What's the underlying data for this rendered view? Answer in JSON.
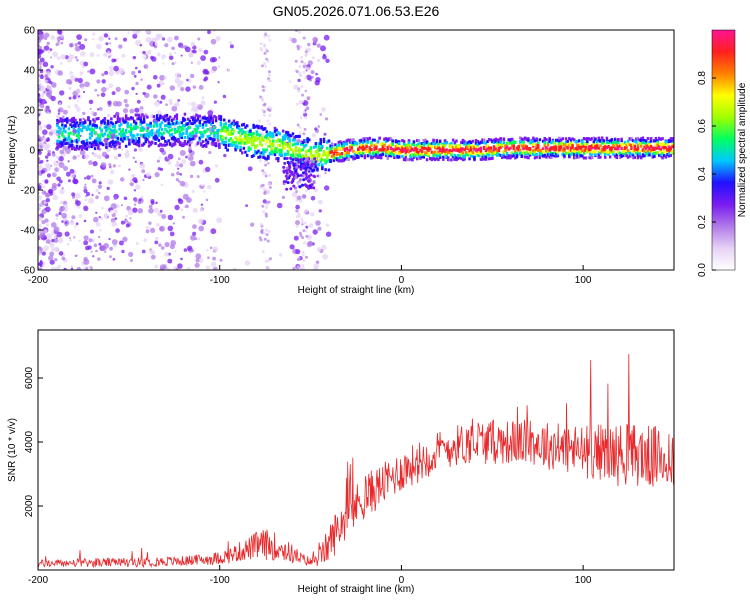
{
  "chart_data": [
    {
      "type": "heatmap",
      "title": "GN05.2026.071.06.53.E26",
      "xlabel": "Height of straight line (km)",
      "ylabel": "Frequency (Hz)",
      "xlim": [
        -200,
        150
      ],
      "ylim": [
        -60,
        60
      ],
      "xticks": [
        -200,
        -100,
        0,
        100
      ],
      "yticks": [
        60,
        40,
        20,
        0,
        -20,
        -40,
        -60
      ],
      "ridge": {
        "x": [
          -200,
          -180,
          -160,
          -140,
          -120,
          -100,
          -90,
          -80,
          -70,
          -60,
          -50,
          -40,
          -30,
          -20,
          -10,
          0,
          20,
          40,
          60,
          80,
          100,
          120,
          150
        ],
        "freq": [
          8,
          8,
          9,
          10,
          10,
          9,
          6,
          4,
          3,
          0,
          -3,
          -2,
          0,
          1,
          1,
          0,
          0,
          0,
          1,
          1,
          1,
          1,
          1
        ]
      },
      "colorbar": {
        "label": "Normalized spectral amplitude",
        "range": [
          0,
          1
        ],
        "ticks": [
          "0.0",
          "0.2",
          "0.4",
          "0.6",
          "0.8"
        ],
        "colors": [
          "#ffffff",
          "#e6d2f5",
          "#b07ae8",
          "#7a1cf0",
          "#2010ff",
          "#00c8ff",
          "#00ff60",
          "#a0ff00",
          "#ffff00",
          "#ff8000",
          "#ff2020",
          "#ff1493"
        ]
      }
    },
    {
      "type": "line",
      "title": "",
      "xlabel": "Height of straight line (km)",
      "ylabel": "SNR (10 * v/v)",
      "xlim": [
        -200,
        150
      ],
      "ylim": [
        0,
        7500
      ],
      "xticks": [
        -200,
        -100,
        0,
        100
      ],
      "yticks": [
        2000,
        4000,
        6000
      ],
      "series": [
        {
          "name": "SNR",
          "color": "#e8282a",
          "x": [
            -200,
            -180,
            -160,
            -140,
            -120,
            -110,
            -100,
            -95,
            -90,
            -85,
            -80,
            -75,
            -70,
            -65,
            -60,
            -55,
            -50,
            -45,
            -40,
            -35,
            -30,
            -25,
            -20,
            -15,
            -10,
            -5,
            0,
            10,
            20,
            30,
            40,
            50,
            60,
            70,
            80,
            90,
            100,
            110,
            120,
            130,
            140,
            150
          ],
          "mean": [
            200,
            220,
            230,
            250,
            280,
            320,
            380,
            450,
            550,
            650,
            750,
            800,
            750,
            650,
            500,
            350,
            250,
            400,
            800,
            1300,
            1700,
            2000,
            2300,
            2500,
            2700,
            2900,
            3100,
            3400,
            3700,
            3900,
            4000,
            4000,
            4000,
            4000,
            3900,
            3800,
            3700,
            3700,
            3600,
            3600,
            3500,
            3500
          ],
          "amp": [
            120,
            130,
            140,
            150,
            160,
            180,
            200,
            250,
            300,
            350,
            450,
            500,
            450,
            400,
            300,
            200,
            150,
            300,
            600,
            700,
            700,
            700,
            700,
            700,
            650,
            650,
            650,
            650,
            650,
            650,
            700,
            700,
            700,
            700,
            750,
            800,
            850,
            900,
            1000,
            1000,
            1000,
            1000
          ]
        }
      ]
    }
  ]
}
